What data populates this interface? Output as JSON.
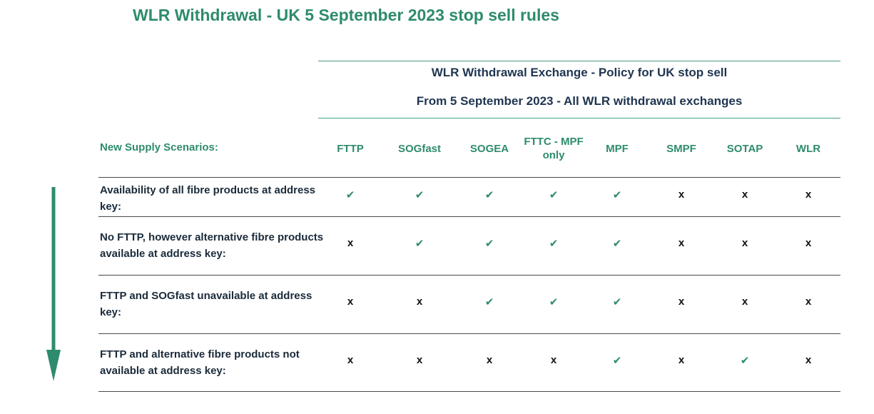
{
  "title": "WLR Withdrawal - UK 5 September 2023 stop sell rules",
  "policy": {
    "line1": "WLR Withdrawal  Exchange - Policy for UK stop sell",
    "line2": "From 5 September 2023 - All WLR withdrawal  exchanges"
  },
  "table": {
    "scenario_header": "New Supply Scenarios:",
    "columns": [
      "FTTP",
      "SOGfast",
      "SOGEA",
      "FTTC - MPF only",
      "MPF",
      "SMPF",
      "SOTAP",
      "WLR"
    ],
    "rows": [
      {
        "scenario": "Availability of all fibre products at address key:",
        "cells": [
          "✔",
          "✔",
          "✔",
          "✔",
          "✔",
          "x",
          "x",
          "x"
        ]
      },
      {
        "scenario": "No FTTP, however alternative fibre products available at address key:",
        "cells": [
          "x",
          "✔",
          "✔",
          "✔",
          "✔",
          "x",
          "x",
          "x"
        ]
      },
      {
        "scenario": "FTTP and SOGfast unavailable at address key:",
        "cells": [
          "x",
          "x",
          "✔",
          "✔",
          "✔",
          "x",
          "x",
          "x"
        ]
      },
      {
        "scenario": "FTTP and alternative fibre products not available at address key:",
        "cells": [
          "x",
          "x",
          "x",
          "x",
          "✔",
          "x",
          "✔",
          "x"
        ]
      }
    ]
  },
  "colors": {
    "accent": "#2e8b6e",
    "heading_dark": "#1f3550",
    "text": "#1b2b3a",
    "rule": "#4a4a4a"
  },
  "icons": {
    "available": "check-icon",
    "unavailable": "x-mark",
    "arrow": "down-arrow-icon"
  }
}
